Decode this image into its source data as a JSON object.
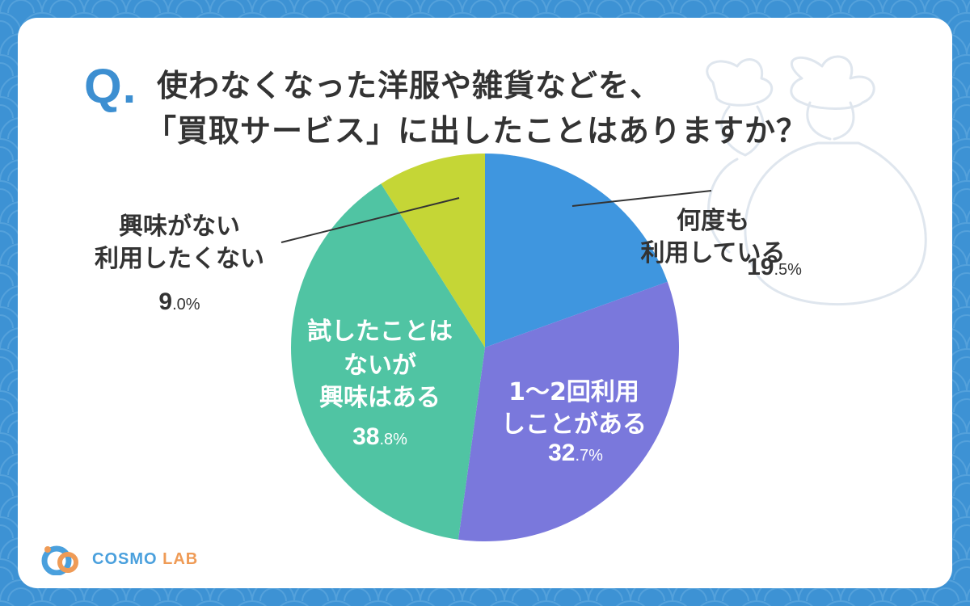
{
  "question": {
    "prefix": "Q.",
    "line1": "使わなくなった洋服や雑貨などを、",
    "line2": "「買取サービス」に出したことはありますか？"
  },
  "colors": {
    "background": "#3d92d4",
    "accent": "#3d8fd1",
    "text": "#333333"
  },
  "logo": {
    "brand": "COSMO",
    "suffix": "LAB"
  },
  "chart_data": {
    "type": "pie",
    "unit": "%",
    "start": "12 o'clock",
    "direction": "clockwise",
    "slices": [
      {
        "label_lines": [
          "何度も",
          "利用している"
        ],
        "value_int": "19",
        "value_dec": ".5%",
        "value": 19.5,
        "color": "#3f96df",
        "label_placement": "outside-right"
      },
      {
        "label_lines": [
          "1〜2回利用",
          "しことがある"
        ],
        "value_int": "32",
        "value_dec": ".7%",
        "value": 32.7,
        "color": "#7a78dc",
        "label_placement": "inside"
      },
      {
        "label_lines": [
          "試したことは",
          "ないが",
          "興味はある"
        ],
        "value_int": "38",
        "value_dec": ".8%",
        "value": 38.8,
        "color": "#50c4a3",
        "label_placement": "inside"
      },
      {
        "label_lines": [
          "興味がない",
          "利用したくない"
        ],
        "value_int": "9",
        "value_dec": ".0%",
        "value": 9.0,
        "color": "#c5d636",
        "label_placement": "outside-left"
      }
    ]
  }
}
